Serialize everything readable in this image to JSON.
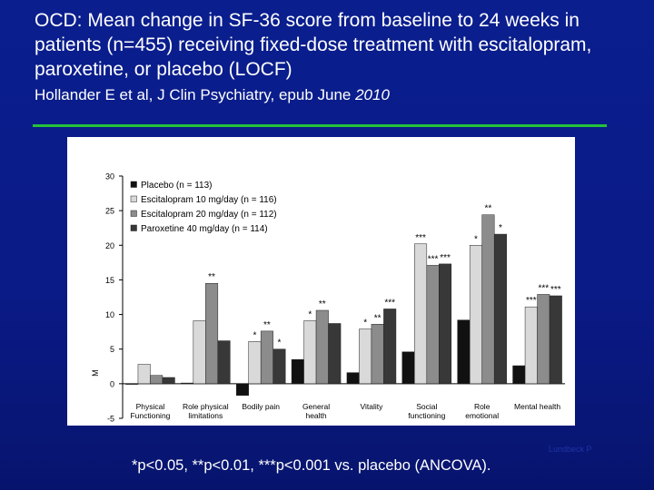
{
  "slide": {
    "title": "OCD: Mean change in SF-36 score from baseline to 24 weeks in patients (n=455) receiving fixed-dose treatment with escitalopram, paroxetine, or placebo (LOCF)",
    "citation_main": "Hollander E et al, J Clin Psychiatry, epub June ",
    "citation_year": "2010",
    "footnote": "*p<0.05, **p<0.01, ***p<0.001 vs. placebo (ANCOVA).",
    "slide_number": "Lundbeck  P"
  },
  "chart_data": {
    "type": "bar",
    "title": "",
    "xlabel": "",
    "ylabel": "M",
    "ylim": [
      -5,
      30
    ],
    "yticks": [
      -5,
      0,
      5,
      10,
      15,
      20,
      25,
      30
    ],
    "grid": false,
    "legend_position": "top-left",
    "categories": [
      "Physical\nFunctioning",
      "Role physical\nlimitations",
      "Bodily pain",
      "General\nhealth",
      "Vitality",
      "Social\nfunctioning",
      "Role\nemotional",
      "Mental health"
    ],
    "colors": [
      "#111111",
      "#d9d9d9",
      "#8c8c8c",
      "#383838"
    ],
    "series": [
      {
        "name": "Placebo (n = 113)",
        "values": [
          -0.1,
          0.1,
          -1.7,
          3.5,
          1.6,
          4.6,
          9.2,
          2.6
        ]
      },
      {
        "name": "Escitalopram 10 mg/day (n = 116)",
        "values": [
          2.8,
          9.1,
          6.1,
          9.1,
          7.9,
          20.2,
          20.0,
          11.1
        ]
      },
      {
        "name": "Escitalopram 20 mg/day (n = 112)",
        "values": [
          1.2,
          14.5,
          7.6,
          10.6,
          8.6,
          17.1,
          24.4,
          12.9
        ]
      },
      {
        "name": "Paroxetine 40 mg/day (n = 114)",
        "values": [
          0.9,
          6.2,
          5.0,
          8.7,
          10.8,
          17.3,
          21.6,
          12.7
        ]
      }
    ],
    "annotations": [
      {
        "text": "**",
        "category": 1,
        "series": 2
      },
      {
        "text": "*",
        "category": 2,
        "series": 1
      },
      {
        "text": "**",
        "category": 2,
        "series": 2
      },
      {
        "text": "*",
        "category": 2,
        "series": 3
      },
      {
        "text": "*",
        "category": 3,
        "series": 1
      },
      {
        "text": "**",
        "category": 3,
        "series": 2
      },
      {
        "text": "*",
        "category": 4,
        "series": 1
      },
      {
        "text": "**",
        "category": 4,
        "series": 2
      },
      {
        "text": "***",
        "category": 4,
        "series": 3
      },
      {
        "text": "***",
        "category": 5,
        "series": 1
      },
      {
        "text": "***",
        "category": 5,
        "series": 2
      },
      {
        "text": "***",
        "category": 5,
        "series": 3
      },
      {
        "text": "*",
        "category": 6,
        "series": 1
      },
      {
        "text": "**",
        "category": 6,
        "series": 2
      },
      {
        "text": "*",
        "category": 6,
        "series": 3
      },
      {
        "text": "***",
        "category": 7,
        "series": 1
      },
      {
        "text": "***",
        "category": 7,
        "series": 2
      },
      {
        "text": "***",
        "category": 7,
        "series": 3
      }
    ]
  }
}
